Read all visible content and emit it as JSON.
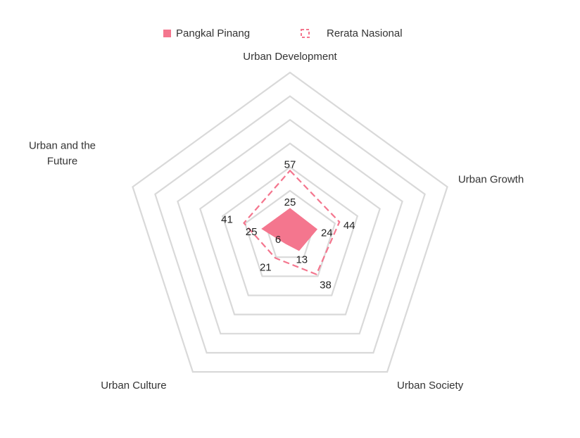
{
  "chart_data": {
    "type": "radar",
    "title": "",
    "categories": [
      [
        "Urban Development"
      ],
      [
        "Urban Growth"
      ],
      [
        "Urban Society"
      ],
      [
        "Urban Culture"
      ],
      [
        "Urban and the",
        "Future"
      ]
    ],
    "series": [
      {
        "name": "Pangkal Pinang",
        "values": [
          25,
          24,
          13,
          6,
          25
        ],
        "style": "filled",
        "color": "#f4768e"
      },
      {
        "name": "Rerata Nasional",
        "values": [
          57,
          44,
          38,
          21,
          41
        ],
        "style": "dashed",
        "color": "#f4768e"
      }
    ],
    "rlim": [
      0,
      140
    ],
    "grid_rings": 7,
    "legend_position": "top"
  }
}
